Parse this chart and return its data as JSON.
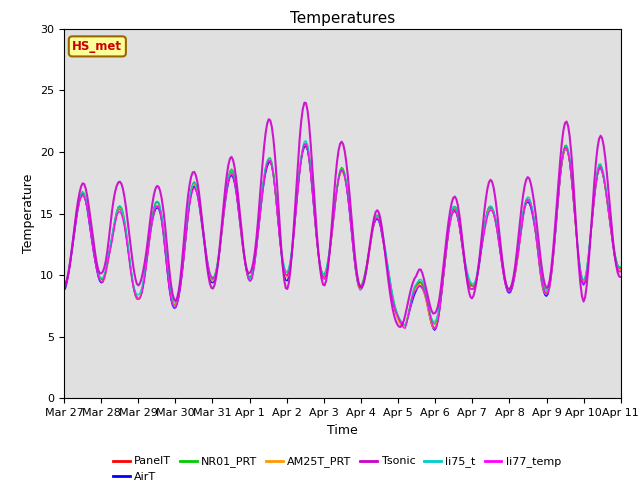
{
  "title": "Temperatures",
  "ylabel": "Temperature",
  "xlabel": "Time",
  "annotation": "HS_met",
  "annotation_color": "#cc0000",
  "annotation_bg": "#ffff99",
  "annotation_border": "#996600",
  "ylim": [
    0,
    30
  ],
  "yticks": [
    0,
    5,
    10,
    15,
    20,
    25,
    30
  ],
  "background_color": "#e0e0e0",
  "series": [
    {
      "name": "PanelT",
      "color": "#ff0000"
    },
    {
      "name": "AirT",
      "color": "#0000ff"
    },
    {
      "name": "NR01_PRT",
      "color": "#00cc00"
    },
    {
      "name": "AM25T_PRT",
      "color": "#ff9900"
    },
    {
      "name": "Tsonic",
      "color": "#cc00cc"
    },
    {
      "name": "li75_t",
      "color": "#00cccc"
    },
    {
      "name": "li77_temp",
      "color": "#ff00ff"
    }
  ],
  "xtick_labels": [
    "Mar 27",
    "Mar 28",
    "Mar 29",
    "Mar 30",
    "Mar 31",
    "Apr 1",
    "Apr 2",
    "Apr 3",
    "Apr 4",
    "Apr 5",
    "Apr 6",
    "Apr 7",
    "Apr 8",
    "Apr 9",
    "Apr 10",
    "Apr 11"
  ],
  "title_fontsize": 11,
  "axis_fontsize": 9,
  "tick_fontsize": 8
}
